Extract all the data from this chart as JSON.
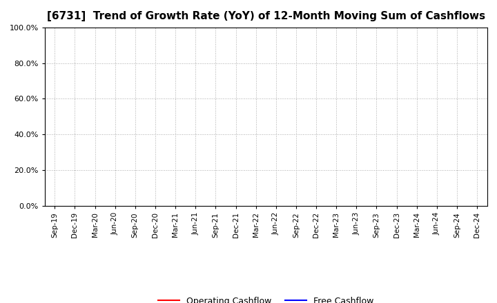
{
  "title": "[6731]  Trend of Growth Rate (YoY) of 12-Month Moving Sum of Cashflows",
  "title_fontsize": 11,
  "ylim": [
    0.0,
    1.0
  ],
  "yticks": [
    0.0,
    0.2,
    0.4,
    0.6,
    0.8,
    1.0
  ],
  "ytick_labels": [
    "0.0%",
    "20.0%",
    "40.0%",
    "60.0%",
    "80.0%",
    "100.0%"
  ],
  "xtick_labels": [
    "Sep-19",
    "Dec-19",
    "Mar-20",
    "Jun-20",
    "Sep-20",
    "Dec-20",
    "Mar-21",
    "Jun-21",
    "Sep-21",
    "Dec-21",
    "Mar-22",
    "Jun-22",
    "Sep-22",
    "Dec-22",
    "Mar-23",
    "Jun-23",
    "Sep-23",
    "Dec-23",
    "Mar-24",
    "Jun-24",
    "Sep-24",
    "Dec-24"
  ],
  "grid_color": "#aaaaaa",
  "grid_linestyle": ":",
  "grid_linewidth": 0.7,
  "background_color": "#ffffff",
  "plot_bg_color": "#ffffff",
  "legend_labels": [
    "Operating Cashflow",
    "Free Cashflow"
  ],
  "legend_colors": [
    "#ff0000",
    "#0000ff"
  ],
  "operating_cashflow": [],
  "free_cashflow": [],
  "line_linewidth": 1.5,
  "spine_color": "#000000",
  "tick_fontsize": 7.5,
  "legend_fontsize": 9,
  "ytick_fontsize": 8
}
